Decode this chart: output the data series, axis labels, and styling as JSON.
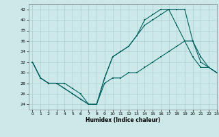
{
  "title": "",
  "xlabel": "Humidex (Indice chaleur)",
  "xlim": [
    -0.5,
    23
  ],
  "ylim": [
    23,
    43
  ],
  "xticks": [
    0,
    1,
    2,
    3,
    4,
    5,
    6,
    7,
    8,
    9,
    10,
    11,
    12,
    13,
    14,
    15,
    16,
    17,
    18,
    19,
    20,
    21,
    22,
    23
  ],
  "yticks": [
    24,
    26,
    28,
    30,
    32,
    34,
    36,
    38,
    40,
    42
  ],
  "bg_color": "#cce8e8",
  "grid_color": "#aacfcf",
  "line_color": "#006060",
  "line1_x": [
    0,
    1,
    2,
    3,
    4,
    5,
    6,
    7,
    8,
    9,
    10,
    11,
    12,
    13,
    14,
    15,
    16,
    17,
    18,
    19,
    20,
    21,
    22,
    23
  ],
  "line1_y": [
    32,
    29,
    28,
    28,
    28,
    27,
    26,
    24,
    24,
    29,
    33,
    34,
    35,
    37,
    39,
    40,
    41,
    42,
    42,
    42,
    36,
    32,
    31,
    30
  ],
  "line2_x": [
    0,
    1,
    2,
    3,
    4,
    5,
    6,
    7,
    8,
    9,
    10,
    11,
    12,
    13,
    14,
    15,
    16,
    17,
    18,
    19,
    20,
    21,
    22,
    23
  ],
  "line2_y": [
    32,
    29,
    28,
    28,
    27,
    26,
    25,
    24,
    24,
    29,
    33,
    34,
    35,
    37,
    40,
    41,
    42,
    42,
    39,
    36,
    33,
    31,
    31,
    30
  ],
  "line3_x": [
    0,
    1,
    2,
    3,
    4,
    5,
    6,
    7,
    8,
    9,
    10,
    11,
    12,
    13,
    14,
    15,
    16,
    17,
    18,
    19,
    20,
    21,
    22,
    23
  ],
  "line3_y": [
    32,
    29,
    28,
    28,
    27,
    26,
    25,
    24,
    24,
    28,
    29,
    29,
    30,
    30,
    31,
    32,
    33,
    34,
    35,
    36,
    36,
    33,
    31,
    30
  ]
}
